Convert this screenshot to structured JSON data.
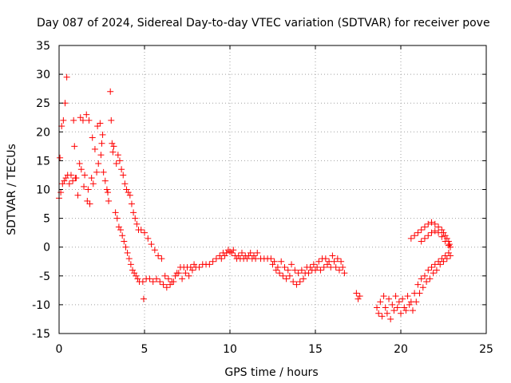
{
  "chart_data": {
    "type": "scatter",
    "title": "Day 087 of 2024, Sidereal Day-to-day VTEC variation (SDTVAR) for receiver pove",
    "xlabel": "GPS time / hours",
    "ylabel": "SDTVAR / TECUs",
    "xlim": [
      0,
      25
    ],
    "ylim": [
      -15,
      35
    ],
    "xticks": [
      0,
      5,
      10,
      15,
      20,
      25
    ],
    "yticks": [
      -15,
      -10,
      -5,
      0,
      5,
      10,
      15,
      20,
      25,
      30,
      35
    ],
    "grid": true,
    "marker": "plus",
    "color": "#ff0000",
    "series": [
      {
        "name": "pove",
        "points": [
          [
            0.0,
            8.5
          ],
          [
            0.05,
            15.5
          ],
          [
            0.1,
            9.5
          ],
          [
            0.15,
            21.0
          ],
          [
            0.2,
            11.0
          ],
          [
            0.25,
            22.0
          ],
          [
            0.3,
            11.5
          ],
          [
            0.35,
            25.0
          ],
          [
            0.4,
            12.0
          ],
          [
            0.45,
            29.5
          ],
          [
            0.5,
            12.5
          ],
          [
            0.6,
            11.0
          ],
          [
            0.7,
            12.5
          ],
          [
            0.8,
            11.5
          ],
          [
            0.85,
            22.0
          ],
          [
            0.9,
            17.5
          ],
          [
            0.95,
            12.0
          ],
          [
            1.0,
            12.0
          ],
          [
            1.1,
            9.0
          ],
          [
            1.2,
            14.5
          ],
          [
            1.25,
            22.5
          ],
          [
            1.3,
            13.5
          ],
          [
            1.4,
            22.0
          ],
          [
            1.45,
            10.5
          ],
          [
            1.5,
            12.5
          ],
          [
            1.6,
            23.0
          ],
          [
            1.65,
            8.0
          ],
          [
            1.7,
            10.0
          ],
          [
            1.75,
            22.0
          ],
          [
            1.8,
            7.5
          ],
          [
            1.9,
            12.0
          ],
          [
            1.95,
            19.0
          ],
          [
            2.0,
            11.0
          ],
          [
            2.1,
            17.0
          ],
          [
            2.2,
            13.0
          ],
          [
            2.25,
            21.0
          ],
          [
            2.3,
            14.5
          ],
          [
            2.4,
            21.5
          ],
          [
            2.45,
            16.0
          ],
          [
            2.5,
            18.0
          ],
          [
            2.55,
            19.5
          ],
          [
            2.6,
            13.0
          ],
          [
            2.7,
            11.5
          ],
          [
            2.8,
            10.0
          ],
          [
            2.85,
            9.5
          ],
          [
            2.9,
            8.0
          ],
          [
            3.0,
            27.0
          ],
          [
            3.05,
            22.0
          ],
          [
            3.1,
            18.0
          ],
          [
            3.15,
            16.5
          ],
          [
            3.2,
            17.5
          ],
          [
            3.3,
            6.0
          ],
          [
            3.35,
            14.5
          ],
          [
            3.4,
            5.0
          ],
          [
            3.45,
            16.0
          ],
          [
            3.5,
            3.5
          ],
          [
            3.55,
            15.0
          ],
          [
            3.6,
            3.0
          ],
          [
            3.65,
            13.5
          ],
          [
            3.7,
            2.0
          ],
          [
            3.75,
            12.5
          ],
          [
            3.8,
            1.0
          ],
          [
            3.85,
            11.0
          ],
          [
            3.9,
            0.0
          ],
          [
            3.95,
            10.0
          ],
          [
            4.0,
            -1.0
          ],
          [
            4.05,
            9.5
          ],
          [
            4.1,
            -2.0
          ],
          [
            4.15,
            9.0
          ],
          [
            4.2,
            -3.0
          ],
          [
            4.25,
            7.5
          ],
          [
            4.3,
            -4.0
          ],
          [
            4.35,
            6.0
          ],
          [
            4.4,
            -4.5
          ],
          [
            4.45,
            5.0
          ],
          [
            4.5,
            -5.0
          ],
          [
            4.55,
            4.0
          ],
          [
            4.6,
            -5.5
          ],
          [
            4.65,
            3.0
          ],
          [
            4.7,
            -6.0
          ],
          [
            4.8,
            3.0
          ],
          [
            4.9,
            -6.0
          ],
          [
            4.95,
            -9.0
          ],
          [
            5.0,
            2.5
          ],
          [
            5.1,
            -5.5
          ],
          [
            5.2,
            1.5
          ],
          [
            5.3,
            -5.5
          ],
          [
            5.4,
            0.5
          ],
          [
            5.5,
            -6.0
          ],
          [
            5.6,
            -0.5
          ],
          [
            5.7,
            -5.5
          ],
          [
            5.8,
            -1.5
          ],
          [
            5.9,
            -6.0
          ],
          [
            6.0,
            -2.0
          ],
          [
            6.1,
            -6.5
          ],
          [
            6.2,
            -5.0
          ],
          [
            6.3,
            -7.0
          ],
          [
            6.4,
            -5.5
          ],
          [
            6.5,
            -6.5
          ],
          [
            6.6,
            -6.0
          ],
          [
            6.7,
            -6.0
          ],
          [
            6.8,
            -5.0
          ],
          [
            6.9,
            -4.5
          ],
          [
            7.0,
            -4.5
          ],
          [
            7.1,
            -3.5
          ],
          [
            7.2,
            -5.5
          ],
          [
            7.3,
            -3.5
          ],
          [
            7.4,
            -4.5
          ],
          [
            7.5,
            -3.5
          ],
          [
            7.6,
            -5.0
          ],
          [
            7.7,
            -3.5
          ],
          [
            7.8,
            -4.0
          ],
          [
            7.9,
            -3.0
          ],
          [
            8.0,
            -3.5
          ],
          [
            8.2,
            -3.5
          ],
          [
            8.4,
            -3.0
          ],
          [
            8.6,
            -3.0
          ],
          [
            8.8,
            -3.0
          ],
          [
            9.0,
            -2.5
          ],
          [
            9.2,
            -2.0
          ],
          [
            9.4,
            -1.5
          ],
          [
            9.5,
            -2.0
          ],
          [
            9.6,
            -1.0
          ],
          [
            9.7,
            -1.5
          ],
          [
            9.8,
            -1.0
          ],
          [
            9.9,
            -0.5
          ],
          [
            10.0,
            -0.8
          ],
          [
            10.1,
            -1.0
          ],
          [
            10.2,
            -0.5
          ],
          [
            10.3,
            -1.5
          ],
          [
            10.4,
            -2.0
          ],
          [
            10.5,
            -1.5
          ],
          [
            10.6,
            -2.0
          ],
          [
            10.7,
            -1.0
          ],
          [
            10.8,
            -2.0
          ],
          [
            10.9,
            -1.5
          ],
          [
            11.0,
            -2.0
          ],
          [
            11.1,
            -1.5
          ],
          [
            11.2,
            -1.0
          ],
          [
            11.3,
            -2.0
          ],
          [
            11.4,
            -1.5
          ],
          [
            11.5,
            -2.0
          ],
          [
            11.6,
            -1.0
          ],
          [
            11.8,
            -2.0
          ],
          [
            12.0,
            -2.0
          ],
          [
            12.2,
            -2.0
          ],
          [
            12.4,
            -2.0
          ],
          [
            12.5,
            -3.0
          ],
          [
            12.6,
            -2.5
          ],
          [
            12.7,
            -4.0
          ],
          [
            12.8,
            -3.5
          ],
          [
            12.9,
            -4.5
          ],
          [
            13.0,
            -2.5
          ],
          [
            13.1,
            -5.0
          ],
          [
            13.2,
            -3.5
          ],
          [
            13.3,
            -5.5
          ],
          [
            13.4,
            -4.0
          ],
          [
            13.5,
            -5.0
          ],
          [
            13.6,
            -3.0
          ],
          [
            13.7,
            -6.0
          ],
          [
            13.8,
            -4.0
          ],
          [
            13.9,
            -6.5
          ],
          [
            14.0,
            -4.5
          ],
          [
            14.1,
            -6.0
          ],
          [
            14.2,
            -4.0
          ],
          [
            14.3,
            -5.5
          ],
          [
            14.4,
            -4.5
          ],
          [
            14.5,
            -3.5
          ],
          [
            14.6,
            -4.5
          ],
          [
            14.7,
            -3.5
          ],
          [
            14.8,
            -4.0
          ],
          [
            14.9,
            -3.0
          ],
          [
            15.0,
            -4.0
          ],
          [
            15.1,
            -3.5
          ],
          [
            15.2,
            -2.5
          ],
          [
            15.3,
            -4.0
          ],
          [
            15.4,
            -2.0
          ],
          [
            15.5,
            -3.5
          ],
          [
            15.6,
            -2.0
          ],
          [
            15.7,
            -3.0
          ],
          [
            15.8,
            -2.5
          ],
          [
            15.9,
            -3.5
          ],
          [
            16.0,
            -1.5
          ],
          [
            16.1,
            -2.5
          ],
          [
            16.2,
            -3.5
          ],
          [
            16.3,
            -2.0
          ],
          [
            16.4,
            -4.0
          ],
          [
            16.5,
            -2.5
          ],
          [
            16.6,
            -3.5
          ],
          [
            16.7,
            -4.5
          ],
          [
            17.4,
            -8.0
          ],
          [
            17.5,
            -9.0
          ],
          [
            17.6,
            -8.5
          ],
          [
            18.6,
            -10.5
          ],
          [
            18.7,
            -11.5
          ],
          [
            18.8,
            -9.5
          ],
          [
            18.9,
            -12.0
          ],
          [
            19.0,
            -8.5
          ],
          [
            19.1,
            -10.5
          ],
          [
            19.2,
            -11.5
          ],
          [
            19.3,
            -9.0
          ],
          [
            19.4,
            -12.5
          ],
          [
            19.5,
            -10.0
          ],
          [
            19.6,
            -11.0
          ],
          [
            19.7,
            -8.5
          ],
          [
            19.8,
            -10.5
          ],
          [
            19.9,
            -9.5
          ],
          [
            20.0,
            -11.5
          ],
          [
            20.1,
            -9.0
          ],
          [
            20.2,
            -10.5
          ],
          [
            20.3,
            -11.0
          ],
          [
            20.4,
            -8.5
          ],
          [
            20.5,
            -10.0
          ],
          [
            20.6,
            -9.5
          ],
          [
            20.7,
            -11.0
          ],
          [
            20.8,
            -8.0
          ],
          [
            20.9,
            -9.5
          ],
          [
            21.0,
            -6.5
          ],
          [
            21.1,
            -8.0
          ],
          [
            21.2,
            -5.5
          ],
          [
            21.3,
            -7.0
          ],
          [
            21.4,
            -5.0
          ],
          [
            21.5,
            -6.0
          ],
          [
            21.6,
            -4.0
          ],
          [
            21.7,
            -5.5
          ],
          [
            21.8,
            -3.5
          ],
          [
            21.9,
            -4.5
          ],
          [
            22.0,
            -3.0
          ],
          [
            22.1,
            -4.0
          ],
          [
            22.2,
            -2.5
          ],
          [
            22.3,
            -3.0
          ],
          [
            22.4,
            -2.0
          ],
          [
            22.5,
            -2.5
          ],
          [
            22.6,
            -1.5
          ],
          [
            22.7,
            -2.0
          ],
          [
            22.8,
            -1.0
          ],
          [
            22.9,
            -1.5
          ],
          [
            20.6,
            1.5
          ],
          [
            20.8,
            2.0
          ],
          [
            21.0,
            2.5
          ],
          [
            21.2,
            3.0
          ],
          [
            21.4,
            3.5
          ],
          [
            21.6,
            4.0
          ],
          [
            21.8,
            4.3
          ],
          [
            22.0,
            4.0
          ],
          [
            22.2,
            3.5
          ],
          [
            22.4,
            3.0
          ],
          [
            22.5,
            2.5
          ],
          [
            22.6,
            2.0
          ],
          [
            22.7,
            1.5
          ],
          [
            22.8,
            1.0
          ],
          [
            22.85,
            0.5
          ],
          [
            22.9,
            0.0
          ],
          [
            21.2,
            1.0
          ],
          [
            21.4,
            1.5
          ],
          [
            21.6,
            2.0
          ],
          [
            21.8,
            2.5
          ],
          [
            22.0,
            2.8
          ],
          [
            22.2,
            2.5
          ],
          [
            22.4,
            1.8
          ],
          [
            22.6,
            1.0
          ],
          [
            22.8,
            0.3
          ]
        ]
      }
    ]
  }
}
